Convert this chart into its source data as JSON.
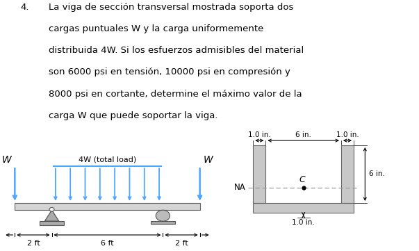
{
  "title_number": "4.",
  "title_text_lines": [
    "La viga de sección transversal mostrada soporta dos",
    "cargas puntuales W y la carga uniformemente",
    "distribuida 4W. Si los esfuerzos admisibles del material",
    "son 6000 psi en tensión, 10000 psi en compresión y",
    "8000 psi en cortante, determine el máximo valor de la",
    "carga W que puede soportar la viga."
  ],
  "beam_color": "#d4d4d4",
  "arrow_color": "#4da6ff",
  "support_color": "#aaaaaa",
  "section_fill": "#c8c8c8",
  "dashed_color": "#999999",
  "background": "#ffffff",
  "text_color": "#000000"
}
